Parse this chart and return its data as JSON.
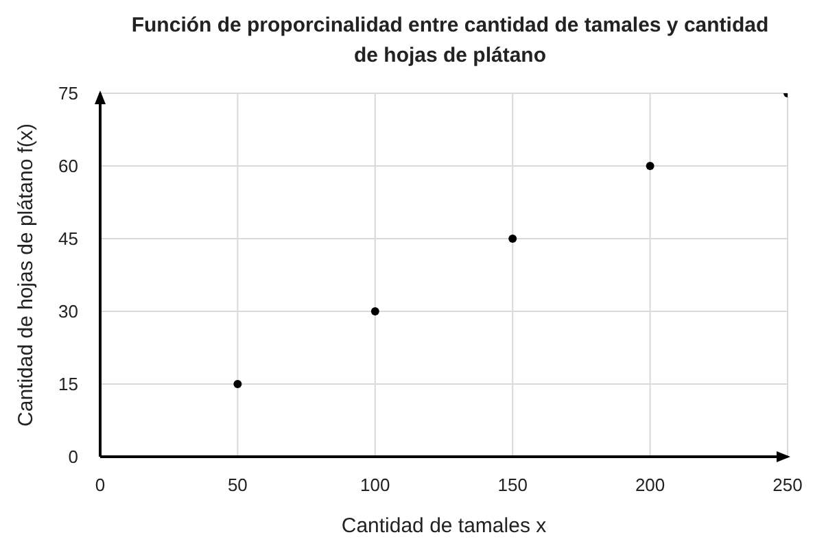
{
  "chart_data": {
    "type": "scatter",
    "title": "Función de proporcinalidad entre cantidad de tamales y cantidad de hojas de plátano",
    "xlabel": "Cantidad de tamales x",
    "ylabel": "Cantidad de hojas de plátano f(x)",
    "x": [
      50,
      100,
      150,
      200,
      250
    ],
    "values": [
      15,
      30,
      45,
      60,
      75
    ],
    "color": "#000000",
    "marker": "circle",
    "xlim": [
      0,
      250
    ],
    "xticks": [
      0,
      50,
      100,
      150,
      200,
      250
    ],
    "ylim": [
      0,
      75
    ],
    "yticks": [
      0,
      15,
      30,
      45,
      60,
      75
    ],
    "grid": true
  }
}
